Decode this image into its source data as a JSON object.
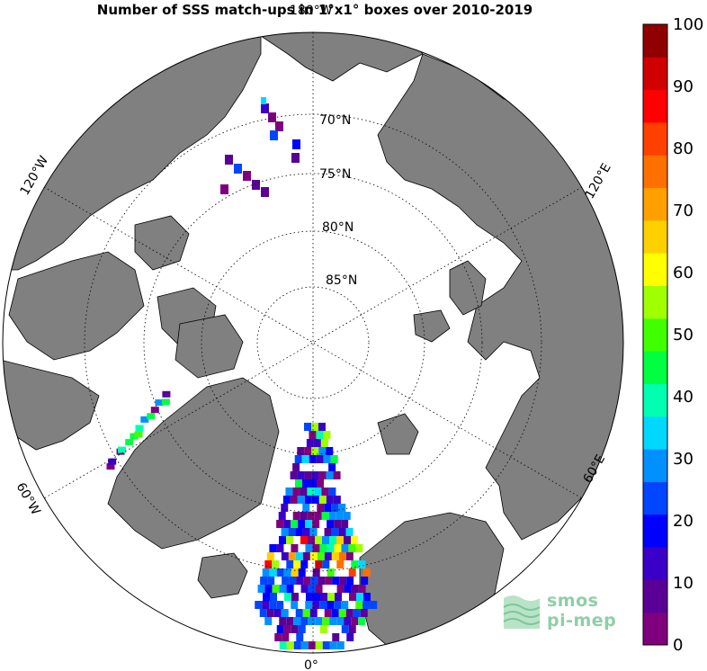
{
  "title": "Number of SSS match-ups in 1°x1° boxes over 2010-2019",
  "map": {
    "projection": "north polar stereographic",
    "center": "North Pole",
    "land_color": "#808080",
    "ocean_color": "#ffffff",
    "latitude_labels": [
      "70°N",
      "75°N",
      "80°N",
      "85°N"
    ],
    "longitude_labels": {
      "top": "180°W",
      "upper_left": "120°W",
      "upper_right": "120°E",
      "lower_left": "60°W",
      "lower_right": "60°E",
      "bottom": "0°"
    }
  },
  "colorbar": {
    "min": 0,
    "max": 100,
    "tick_labels": [
      "0",
      "10",
      "20",
      "30",
      "40",
      "50",
      "60",
      "70",
      "80",
      "90",
      "100"
    ],
    "colors": [
      "#7f007f",
      "#5a0096",
      "#3a00c8",
      "#0000ff",
      "#0046ff",
      "#0090ff",
      "#00d8ff",
      "#00ffb0",
      "#00ff40",
      "#40ff00",
      "#a0ff00",
      "#ffff00",
      "#ffd000",
      "#ffa000",
      "#ff7000",
      "#ff4000",
      "#ff0000",
      "#d00000",
      "#900000"
    ]
  },
  "logo": {
    "line1": "smos",
    "line2": "pi-mep"
  }
}
